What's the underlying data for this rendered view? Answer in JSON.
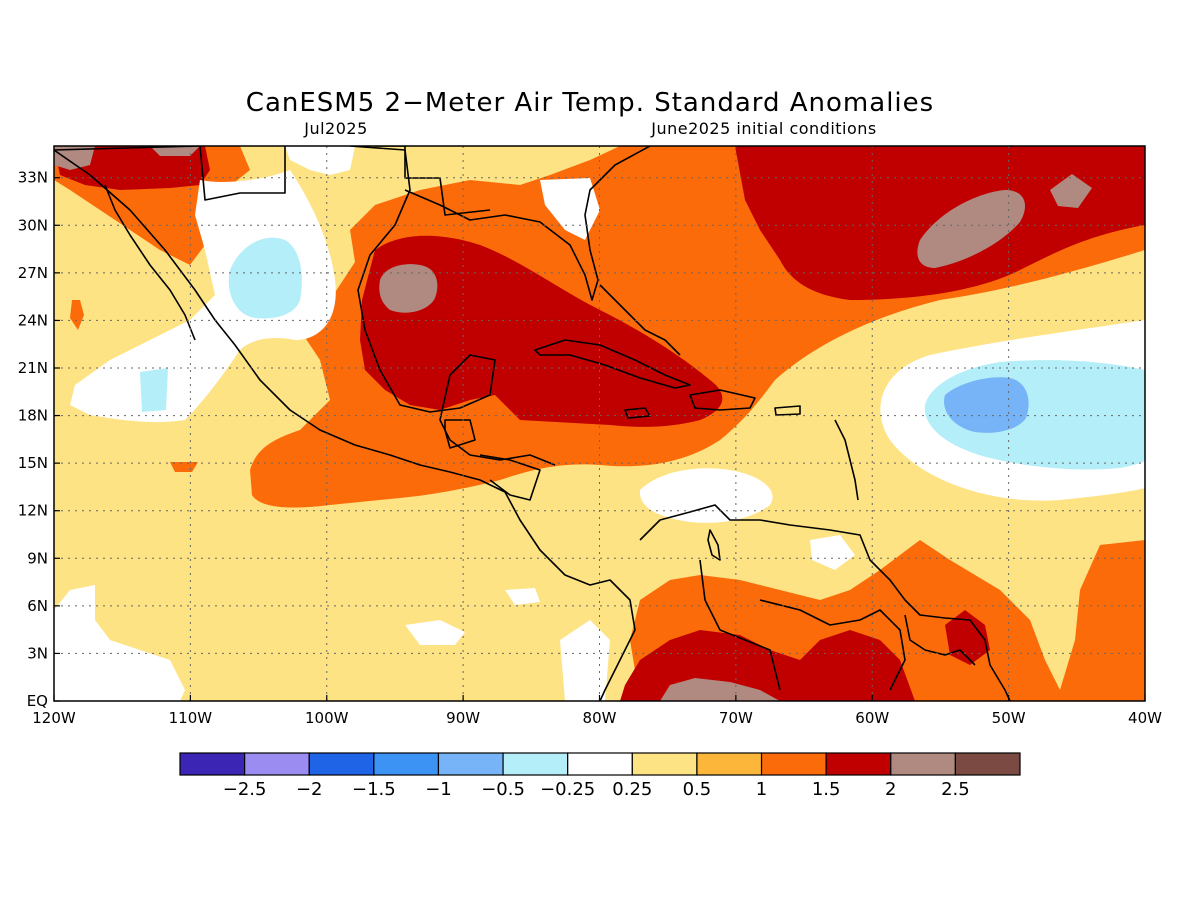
{
  "title": "CanESM5 2−Meter Air Temp. Standard Anomalies",
  "subtitle_left": "Jul2025",
  "subtitle_right": "June2025 initial conditions",
  "map": {
    "lon_range": [
      -120,
      -40
    ],
    "lat_range": [
      0,
      35
    ],
    "lon_ticks": [
      {
        "value": -120,
        "label": "120W"
      },
      {
        "value": -110,
        "label": "110W"
      },
      {
        "value": -100,
        "label": "100W"
      },
      {
        "value": -90,
        "label": "90W"
      },
      {
        "value": -80,
        "label": "80W"
      },
      {
        "value": -70,
        "label": "70W"
      },
      {
        "value": -60,
        "label": "60W"
      },
      {
        "value": -50,
        "label": "50W"
      },
      {
        "value": -40,
        "label": "40W"
      }
    ],
    "lat_ticks": [
      {
        "value": 0,
        "label": "EQ"
      },
      {
        "value": 3,
        "label": "3N"
      },
      {
        "value": 6,
        "label": "6N"
      },
      {
        "value": 9,
        "label": "9N"
      },
      {
        "value": 12,
        "label": "12N"
      },
      {
        "value": 15,
        "label": "15N"
      },
      {
        "value": 18,
        "label": "18N"
      },
      {
        "value": 21,
        "label": "21N"
      },
      {
        "value": 24,
        "label": "24N"
      },
      {
        "value": 27,
        "label": "27N"
      },
      {
        "value": 30,
        "label": "30N"
      },
      {
        "value": 33,
        "label": "33N"
      }
    ],
    "grid": "dotted"
  },
  "colorbar": {
    "colors": [
      "#3a25b5",
      "#9b8cf2",
      "#1f64e6",
      "#3c93f4",
      "#77b4f7",
      "#b4eef8",
      "#ffffff",
      "#fde384",
      "#fcb73a",
      "#fc6b0a",
      "#c00000",
      "#b08a80",
      "#7b4a42"
    ],
    "labels": [
      "−2.5",
      "−2",
      "−1.5",
      "−1",
      "−0.5",
      "−0.25",
      "0.25",
      "0.5",
      "1",
      "1.5",
      "2",
      "2.5"
    ]
  },
  "palette": {
    "lt": "#fde384",
    "m": "#fcb73a",
    "o": "#fc6b0a",
    "r": "#c00000",
    "b": "#b08a80",
    "c": "#b4eef8",
    "bl": "#77b4f7",
    "w": "#ffffff"
  }
}
